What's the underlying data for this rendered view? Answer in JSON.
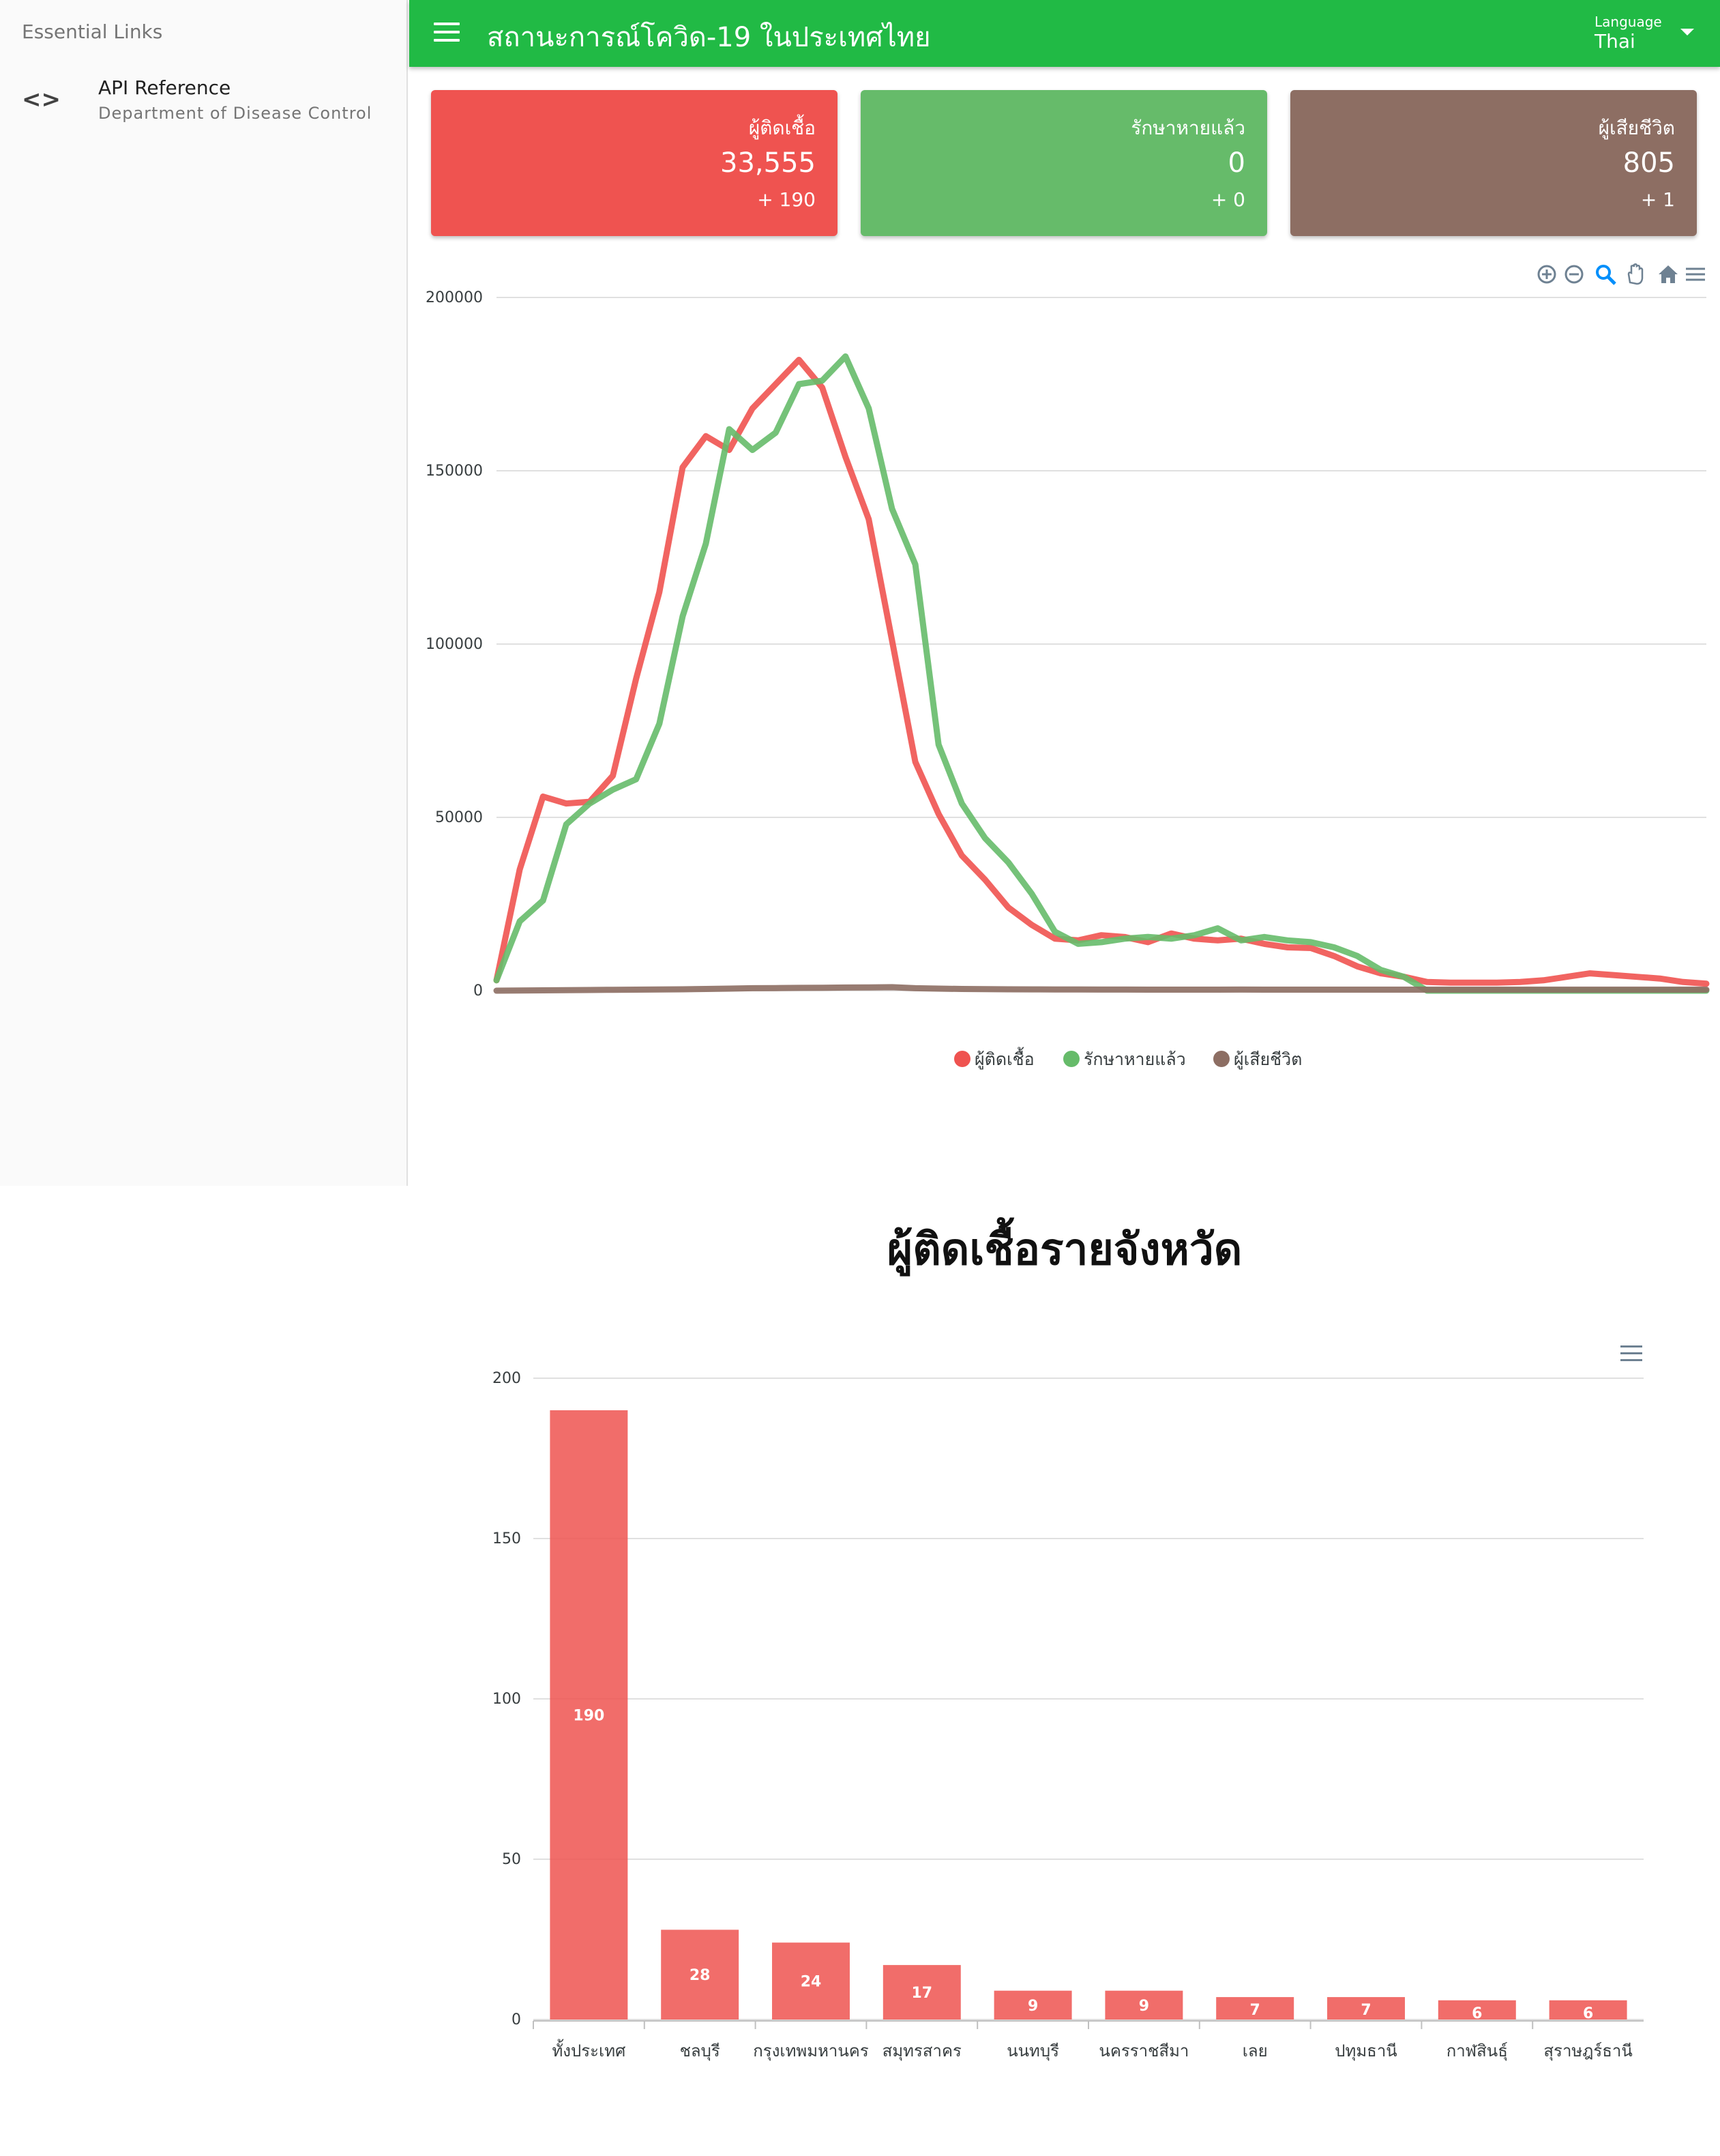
{
  "sidebar": {
    "header": "Essential Links",
    "link": {
      "icon": "code-icon",
      "icon_glyph": "<>",
      "title": "API Reference",
      "subtitle": "Department of Disease Control"
    }
  },
  "header": {
    "title": "สถานะการณ์โควิด-19 ในประเทศไทย",
    "language_label": "Language",
    "language_value": "Thai",
    "color": "#21ba45"
  },
  "cards": {
    "infected": {
      "label": "ผู้ติดเชื้อ",
      "value": "33,555",
      "delta": "+ 190",
      "color": "#ef5350"
    },
    "recovered": {
      "label": "รักษาหายแล้ว",
      "value": "0",
      "delta": "+ 0",
      "color": "#66bb6a"
    },
    "deaths": {
      "label": "ผู้เสียชีวิต",
      "value": "805",
      "delta": "+ 1",
      "color": "#8d6e63"
    }
  },
  "toolbar_icons": [
    "zoom-in-icon",
    "zoom-out-icon",
    "selection-zoom-icon",
    "pan-hand-icon",
    "home-icon",
    "menu-icon"
  ],
  "chart_data": [
    {
      "type": "line",
      "ylim": [
        0,
        200000
      ],
      "yticks": [
        "200000",
        "150000",
        "100000",
        "50000",
        "0"
      ],
      "grid": true,
      "legend_position": "bottom",
      "series": [
        {
          "name": "ผู้ติดเชื้อ",
          "color": "#ef5350",
          "values": [
            3000,
            35000,
            56000,
            54000,
            54500,
            62000,
            90000,
            115000,
            151000,
            160000,
            156000,
            168000,
            175000,
            182000,
            174000,
            154000,
            136000,
            101000,
            66000,
            51000,
            39000,
            32000,
            24000,
            19000,
            15000,
            14500,
            16000,
            15500,
            14000,
            16500,
            15000,
            14500,
            15000,
            13500,
            12500,
            12300,
            10000,
            7000,
            5000,
            4000,
            2500,
            2300,
            2300,
            2300,
            2500,
            3000,
            4000,
            5000,
            4500,
            4000,
            3500,
            2500,
            2000
          ]
        },
        {
          "name": "รักษาหายแล้ว",
          "color": "#66bb6a",
          "values": [
            3000,
            20000,
            26000,
            48000,
            54000,
            58000,
            61000,
            77000,
            108000,
            129000,
            162000,
            156000,
            161000,
            175000,
            176000,
            183000,
            168000,
            139000,
            123000,
            71000,
            54000,
            44000,
            37000,
            28000,
            17000,
            13500,
            14000,
            15000,
            15500,
            15000,
            16000,
            18000,
            14500,
            15500,
            14500,
            14000,
            12500,
            10000,
            6000,
            4000,
            0,
            0,
            0,
            0,
            0,
            0,
            0,
            0,
            0,
            0,
            0,
            0,
            0
          ]
        },
        {
          "name": "ผู้เสียชีวิต",
          "color": "#8d6e63",
          "values": [
            0,
            50,
            100,
            150,
            200,
            250,
            300,
            350,
            400,
            500,
            600,
            700,
            750,
            800,
            850,
            900,
            950,
            1000,
            700,
            600,
            500,
            450,
            400,
            380,
            350,
            330,
            320,
            310,
            300,
            300,
            300,
            300,
            310,
            300,
            300,
            300,
            300,
            300,
            300,
            300,
            300,
            300,
            300,
            300,
            300,
            300,
            300,
            300,
            300,
            300,
            300,
            300,
            300
          ]
        }
      ]
    },
    {
      "type": "bar",
      "title": "ผู้ติดเชื้อรายจังหวัด",
      "ylim": [
        0,
        200
      ],
      "yticks": [
        "200",
        "150",
        "100",
        "50",
        "0"
      ],
      "grid": true,
      "color": "#ef5350",
      "categories": [
        "ทั้งประเทศ",
        "ชลบุรี",
        "กรุงเทพมหานคร",
        "สมุทรสาคร",
        "นนทบุรี",
        "นครราชสีมา",
        "เลย",
        "ปทุมธานี",
        "กาฬสินธุ์",
        "สุราษฎร์ธานี"
      ],
      "values": [
        190,
        28,
        24,
        17,
        9,
        9,
        7,
        7,
        6,
        6
      ]
    }
  ]
}
